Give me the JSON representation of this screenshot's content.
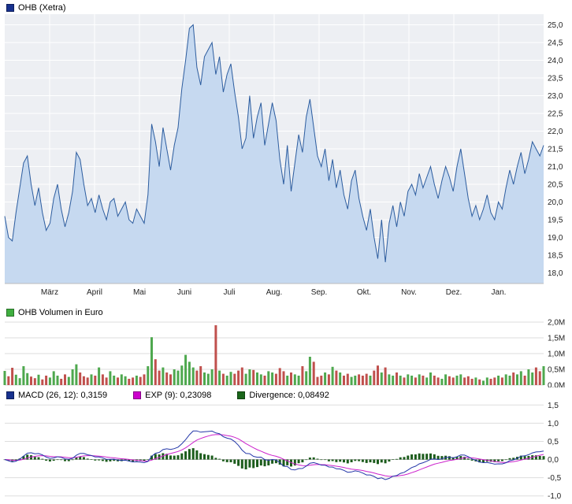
{
  "panels": {
    "price": {
      "title": "OHB (Xetra)",
      "legend_color": "#17318e"
    },
    "volume": {
      "title": "OHB Volumen in Euro",
      "legend_color": "#3fae3f"
    },
    "macd": {
      "items": [
        {
          "label": "MACD (26, 12): 0,3159",
          "color": "#17318e"
        },
        {
          "label": "EXP (9): 0,23098",
          "color": "#cc00cc"
        },
        {
          "label": "Divergence: 0,08492",
          "color": "#1a661a"
        }
      ]
    }
  },
  "chart_data": [
    {
      "type": "area",
      "title": "OHB (Xetra)",
      "ylim": [
        17.7,
        25.3
      ],
      "plot_bg": "#edeff3",
      "grid_color": "#ffffff",
      "area_color": "#c6d9f0",
      "line_color": "#2d5d9f",
      "x_labels": [
        "März",
        "April",
        "Mai",
        "Juni",
        "Juli",
        "Aug.",
        "Sep.",
        "Okt.",
        "Nov.",
        "Dez.",
        "Jan."
      ],
      "y_ticks": {
        "values": [
          25,
          24.5,
          24,
          23.5,
          23,
          22.5,
          22,
          21.5,
          21,
          20.5,
          20,
          19.5,
          19,
          18.5,
          18
        ],
        "labels": [
          "25,0",
          "24,5",
          "24,0",
          "23,5",
          "23,0",
          "22,5",
          "22,0",
          "21,5",
          "21,0",
          "20,5",
          "20,0",
          "19,5",
          "19,0",
          "18,5",
          "18,0"
        ]
      },
      "values": [
        19.6,
        19.0,
        18.9,
        19.7,
        20.4,
        21.1,
        21.3,
        20.5,
        19.9,
        20.4,
        19.7,
        19.2,
        19.4,
        20.1,
        20.5,
        19.8,
        19.3,
        19.7,
        20.3,
        21.4,
        21.2,
        20.5,
        19.9,
        20.1,
        19.7,
        20.2,
        19.8,
        19.5,
        20.0,
        20.1,
        19.6,
        19.8,
        20.0,
        19.5,
        19.4,
        19.8,
        19.6,
        19.4,
        20.2,
        22.2,
        21.7,
        21.0,
        22.1,
        21.5,
        20.9,
        21.6,
        22.1,
        23.2,
        24.0,
        24.9,
        25.0,
        23.8,
        23.3,
        24.1,
        24.3,
        24.5,
        23.6,
        24.1,
        23.1,
        23.6,
        23.9,
        23.1,
        22.4,
        21.5,
        21.8,
        23.0,
        21.8,
        22.4,
        22.8,
        21.6,
        22.2,
        22.8,
        22.3,
        21.2,
        20.5,
        21.6,
        20.3,
        21.1,
        21.9,
        21.4,
        22.4,
        22.9,
        22.1,
        21.3,
        21.0,
        21.5,
        20.6,
        21.2,
        20.4,
        20.9,
        20.2,
        19.8,
        20.6,
        20.9,
        20.1,
        19.6,
        19.2,
        19.8,
        19.0,
        18.4,
        19.5,
        18.3,
        19.4,
        19.9,
        19.3,
        20.0,
        19.6,
        20.3,
        20.5,
        20.2,
        20.8,
        20.4,
        20.7,
        21.0,
        20.5,
        20.1,
        20.6,
        21.0,
        20.7,
        20.3,
        21.0,
        21.5,
        20.8,
        20.1,
        19.6,
        19.9,
        19.5,
        19.8,
        20.2,
        19.7,
        19.5,
        20.0,
        19.8,
        20.4,
        20.9,
        20.5,
        21.0,
        21.4,
        20.8,
        21.2,
        21.7,
        21.5,
        21.3,
        21.6
      ]
    },
    {
      "type": "bar",
      "title": "OHB Volumen in Euro",
      "ylim": [
        0,
        2.05
      ],
      "grid_color": "#dddddd",
      "up_color": "#4ea84e",
      "down_color": "#c0504d",
      "y_ticks": {
        "values": [
          2,
          1.5,
          1,
          0.5,
          0
        ],
        "labels": [
          "2,0M",
          "1,5M",
          "1,0M",
          "0,5M",
          "0,0M"
        ]
      },
      "values": [
        0.45,
        0.28,
        0.55,
        0.33,
        0.22,
        0.6,
        0.38,
        0.27,
        0.22,
        0.33,
        0.18,
        0.3,
        0.24,
        0.44,
        0.3,
        0.2,
        0.34,
        0.26,
        0.5,
        0.66,
        0.4,
        0.28,
        0.24,
        0.34,
        0.3,
        0.56,
        0.34,
        0.24,
        0.44,
        0.3,
        0.24,
        0.34,
        0.28,
        0.2,
        0.24,
        0.3,
        0.26,
        0.34,
        0.6,
        1.52,
        0.82,
        0.46,
        0.56,
        0.4,
        0.34,
        0.5,
        0.46,
        0.62,
        0.96,
        0.74,
        0.56,
        0.46,
        0.6,
        0.4,
        0.36,
        0.5,
        1.9,
        0.46,
        0.36,
        0.3,
        0.42,
        0.36,
        0.46,
        0.56,
        0.36,
        0.5,
        0.48,
        0.4,
        0.34,
        0.3,
        0.44,
        0.4,
        0.36,
        0.54,
        0.44,
        0.3,
        0.4,
        0.34,
        0.3,
        0.6,
        0.44,
        0.9,
        0.74,
        0.26,
        0.3,
        0.4,
        0.34,
        0.58,
        0.46,
        0.4,
        0.3,
        0.36,
        0.26,
        0.3,
        0.34,
        0.3,
        0.36,
        0.3,
        0.46,
        0.62,
        0.4,
        0.56,
        0.34,
        0.3,
        0.4,
        0.3,
        0.24,
        0.34,
        0.3,
        0.24,
        0.34,
        0.3,
        0.24,
        0.4,
        0.3,
        0.24,
        0.2,
        0.34,
        0.28,
        0.24,
        0.3,
        0.34,
        0.24,
        0.28,
        0.2,
        0.24,
        0.18,
        0.14,
        0.24,
        0.2,
        0.24,
        0.3,
        0.24,
        0.34,
        0.3,
        0.4,
        0.34,
        0.44,
        0.3,
        0.5,
        0.4,
        0.56,
        0.44,
        0.6
      ]
    },
    {
      "type": "line",
      "title": "MACD (26, 12) with EXP (9) signal and Divergence histogram, derived from price series",
      "ylim": [
        -1.05,
        1.55
      ],
      "grid_color": "#dddddd",
      "macd_fast": 12,
      "macd_slow": 26,
      "signal_period": 9,
      "scale": 0.72,
      "macd_value": "0,3159",
      "signal_value": "0,23098",
      "divergence_value": "0,08492",
      "colors": {
        "macd": "#2437a8",
        "signal": "#cc22cc",
        "histogram": "#1c5c1c"
      },
      "y_ticks": {
        "values": [
          1.5,
          1,
          0.5,
          0,
          -0.5,
          -1
        ],
        "labels": [
          "1,5",
          "1,0",
          "0,5",
          "0,0",
          "-0,5",
          "-1,0"
        ]
      }
    }
  ]
}
